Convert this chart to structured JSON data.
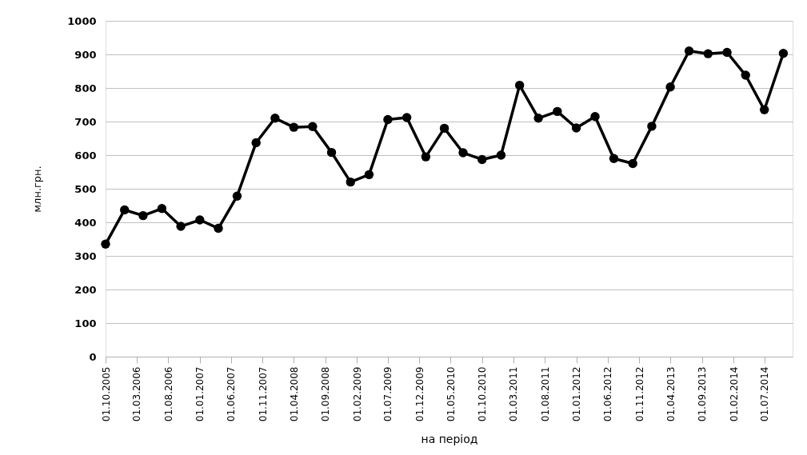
{
  "chart_data": {
    "type": "line",
    "xlabel": "на період",
    "ylabel": "млн.грн.",
    "x": [
      "2005-10-01",
      "2006-01-01",
      "2006-04-01",
      "2006-07-01",
      "2006-10-01",
      "2007-01-01",
      "2007-04-01",
      "2007-07-01",
      "2007-10-01",
      "2008-01-01",
      "2008-04-01",
      "2008-07-01",
      "2008-10-01",
      "2009-01-01",
      "2009-04-01",
      "2009-07-01",
      "2009-10-01",
      "2010-01-01",
      "2010-04-01",
      "2010-07-01",
      "2010-10-01",
      "2011-01-01",
      "2011-04-01",
      "2011-07-01",
      "2011-10-01",
      "2012-01-01",
      "2012-04-01",
      "2012-07-01",
      "2012-10-01",
      "2013-01-01",
      "2013-04-01",
      "2013-07-01",
      "2013-10-01",
      "2014-01-01",
      "2014-04-01",
      "2014-07-01",
      "2014-10-01"
    ],
    "series": [
      {
        "color": "#000000",
        "values": [
          335,
          437,
          420,
          441,
          388,
          407,
          382,
          478,
          637,
          710,
          683,
          685,
          608,
          520,
          542,
          706,
          712,
          595,
          680,
          607,
          587,
          600,
          808,
          710,
          730,
          681,
          715,
          590,
          575,
          686,
          803,
          910,
          902,
          906,
          838,
          735,
          903
        ]
      }
    ],
    "marker": "circle",
    "line_style": "solid",
    "grid": "y",
    "ylim": [
      0,
      1000
    ],
    "yticks": [
      0,
      100,
      200,
      300,
      400,
      500,
      600,
      700,
      800,
      900,
      1000
    ],
    "xlim": [
      "2005-10-01",
      "2014-11-15"
    ],
    "xticks": [
      {
        "value": "2005-10-01",
        "label": "01.10.2005"
      },
      {
        "value": "2006-03-01",
        "label": "01.03.2006"
      },
      {
        "value": "2006-08-01",
        "label": "01.08.2006"
      },
      {
        "value": "2007-01-01",
        "label": "01.01.2007"
      },
      {
        "value": "2007-06-01",
        "label": "01.06.2007"
      },
      {
        "value": "2007-11-01",
        "label": "01.11.2007"
      },
      {
        "value": "2008-04-01",
        "label": "01.04.2008"
      },
      {
        "value": "2008-09-01",
        "label": "01.09.2008"
      },
      {
        "value": "2009-02-01",
        "label": "01.02.2009"
      },
      {
        "value": "2009-07-01",
        "label": "01.07.2009"
      },
      {
        "value": "2009-12-01",
        "label": "01.12.2009"
      },
      {
        "value": "2010-05-01",
        "label": "01.05.2010"
      },
      {
        "value": "2010-10-01",
        "label": "01.10.2010"
      },
      {
        "value": "2011-03-01",
        "label": "01.03.2011"
      },
      {
        "value": "2011-08-01",
        "label": "01.08.2011"
      },
      {
        "value": "2012-01-01",
        "label": "01.01.2012"
      },
      {
        "value": "2012-06-01",
        "label": "01.06.2012"
      },
      {
        "value": "2012-11-01",
        "label": "01.11.2012"
      },
      {
        "value": "2013-04-01",
        "label": "01.04.2013"
      },
      {
        "value": "2013-09-01",
        "label": "01.09.2013"
      },
      {
        "value": "2014-02-01",
        "label": "01.02.2014"
      },
      {
        "value": "2014-07-01",
        "label": "01.07.2014"
      }
    ]
  }
}
